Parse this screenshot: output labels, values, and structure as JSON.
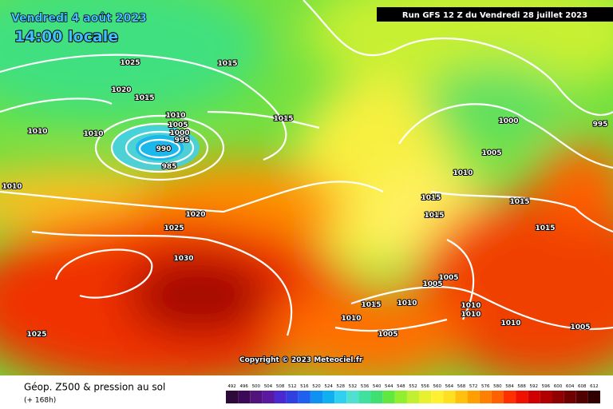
{
  "header": {
    "date": "Vendredi 4 août 2023",
    "time": "14:00 locale",
    "run": "Run GFS 12 Z du Vendredi 28 juillet 2023"
  },
  "copyright": "Copyright © 2023 Meteociel.fr",
  "legend": {
    "title": "Géop. Z500 & pression au sol",
    "lead": "(+ 168h)",
    "values": [
      492,
      496,
      500,
      504,
      508,
      512,
      516,
      520,
      524,
      528,
      532,
      536,
      540,
      544,
      548,
      552,
      556,
      560,
      564,
      568,
      572,
      576,
      580,
      584,
      588,
      592,
      596,
      600,
      604,
      608,
      612
    ],
    "colors": [
      "#2d0a3a",
      "#3d0a5a",
      "#52147a",
      "#5a1aa0",
      "#4a2ad0",
      "#3040e0",
      "#2060f0",
      "#1090f0",
      "#10b0f0",
      "#30d0f0",
      "#50e0d0",
      "#40e0a0",
      "#40e070",
      "#60e840",
      "#90f030",
      "#c0f030",
      "#e8f030",
      "#fff030",
      "#ffe020",
      "#ffc010",
      "#ffa000",
      "#ff8000",
      "#ff6000",
      "#ff3000",
      "#f01000",
      "#d00000",
      "#b00000",
      "#900000",
      "#700000",
      "#500000",
      "#300000"
    ]
  },
  "isobars": [
    1025,
    1015,
    1020,
    1015,
    1010,
    1010,
    1010,
    1005,
    1000,
    995,
    990,
    985,
    1015,
    1000,
    995,
    1005,
    1010,
    1010,
    1015,
    1020,
    1015,
    1015,
    1025,
    1015,
    1030,
    1005,
    1005,
    1010,
    1015,
    1010,
    1010,
    1010,
    1010,
    1005,
    1005,
    1025
  ]
}
